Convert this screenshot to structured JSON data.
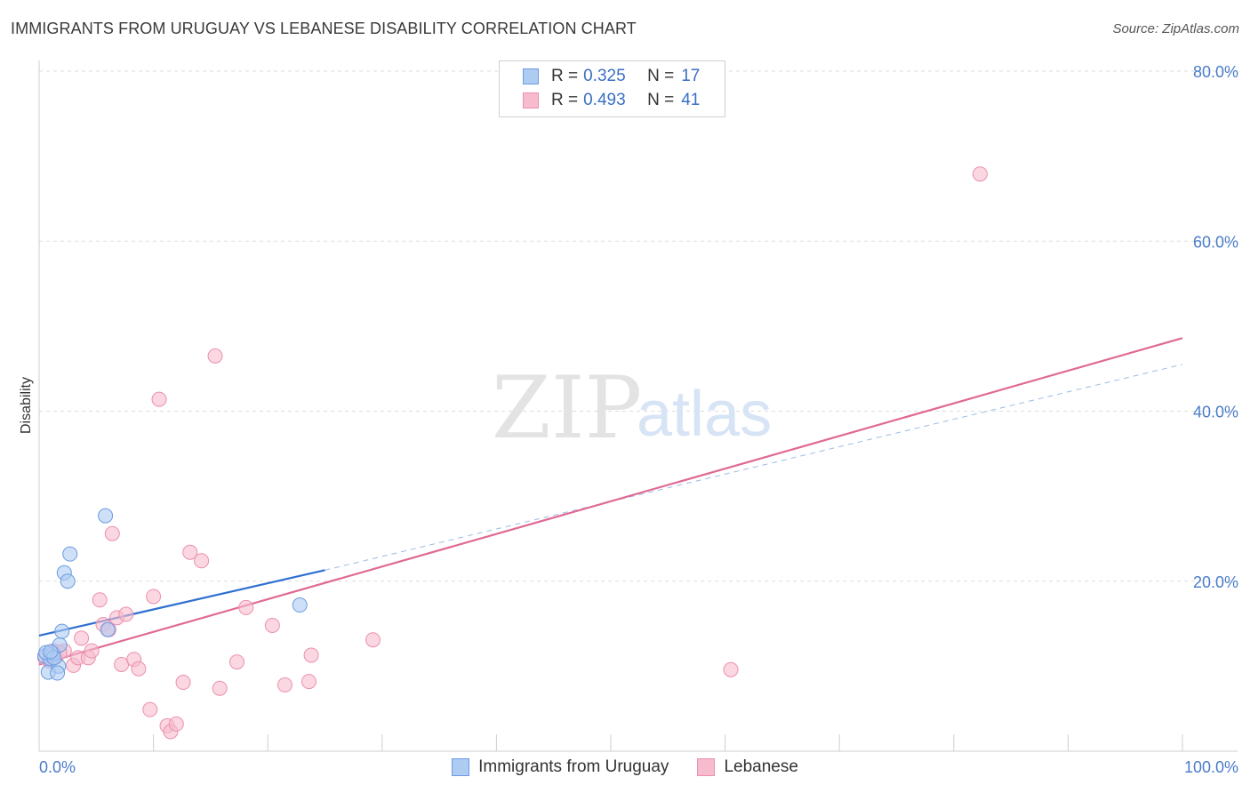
{
  "title": "IMMIGRANTS FROM URUGUAY VS LEBANESE DISABILITY CORRELATION CHART",
  "source": "Source: ZipAtlas.com",
  "watermark": {
    "part1": "ZIP",
    "part2": "atlas"
  },
  "colors": {
    "uruguay_fill": "#aecbf2",
    "uruguay_stroke": "#6b9be0",
    "uruguay_line": "#2f6fd0",
    "lebanese_fill": "#f6bccd",
    "lebanese_stroke": "#ec8fae",
    "lebanese_line": "#e06a93",
    "grid": "#dddddd",
    "tick_label": "#4a7cc9"
  },
  "legend": {
    "rows": [
      {
        "r_label": "R =",
        "r_value": "0.325",
        "n_label": "N =",
        "n_value": "17"
      },
      {
        "r_label": "R =",
        "r_value": "0.493",
        "n_label": "N =",
        "n_value": "41"
      }
    ]
  },
  "bottom_legend": [
    "Immigrants from Uruguay",
    "Lebanese"
  ],
  "chart_data": {
    "type": "scatter",
    "title": "IMMIGRANTS FROM URUGUAY VS LEBANESE DISABILITY CORRELATION CHART",
    "xlabel": "",
    "ylabel": "Disability",
    "xlim": [
      0,
      100
    ],
    "ylim": [
      0,
      80
    ],
    "x_tick_labels": [
      "0.0%",
      "100.0%"
    ],
    "y_ticks": [
      20,
      40,
      60,
      80
    ],
    "y_tick_labels": [
      "20.0%",
      "40.0%",
      "60.0%",
      "80.0%"
    ],
    "grid": true,
    "legend_position": "top-center",
    "series": [
      {
        "name": "Immigrants from Uruguay",
        "r": 0.325,
        "n": 17,
        "points": [
          [
            0.5,
            11.2
          ],
          [
            1.0,
            10.8
          ],
          [
            1.2,
            11.5
          ],
          [
            0.8,
            9.3
          ],
          [
            1.7,
            10.0
          ],
          [
            1.8,
            12.5
          ],
          [
            1.6,
            9.2
          ],
          [
            2.0,
            14.1
          ],
          [
            2.2,
            21.0
          ],
          [
            2.5,
            20.0
          ],
          [
            2.7,
            23.2
          ],
          [
            5.8,
            27.7
          ],
          [
            6.0,
            14.3
          ],
          [
            22.8,
            17.2
          ],
          [
            0.6,
            11.6
          ],
          [
            1.3,
            11.0
          ],
          [
            1.0,
            11.7
          ]
        ],
        "trend": {
          "x": [
            0,
            25
          ],
          "y": [
            13.6,
            21.3
          ]
        },
        "trend_extended": {
          "x": [
            25,
            100
          ],
          "y": [
            21.3,
            45.5
          ]
        }
      },
      {
        "name": "Lebanese",
        "r": 0.493,
        "n": 41,
        "points": [
          [
            0.5,
            11.0
          ],
          [
            1.0,
            11.3
          ],
          [
            1.3,
            11.8
          ],
          [
            1.5,
            11.1
          ],
          [
            2.2,
            11.8
          ],
          [
            3.0,
            10.1
          ],
          [
            3.4,
            11.0
          ],
          [
            3.7,
            13.3
          ],
          [
            4.3,
            11.0
          ],
          [
            4.6,
            11.8
          ],
          [
            5.3,
            17.8
          ],
          [
            5.6,
            14.9
          ],
          [
            6.1,
            14.3
          ],
          [
            6.4,
            25.6
          ],
          [
            6.8,
            15.7
          ],
          [
            7.2,
            10.2
          ],
          [
            7.6,
            16.1
          ],
          [
            8.3,
            10.8
          ],
          [
            8.7,
            9.7
          ],
          [
            9.7,
            4.9
          ],
          [
            10.0,
            18.2
          ],
          [
            10.5,
            41.4
          ],
          [
            11.2,
            3.0
          ],
          [
            11.5,
            2.3
          ],
          [
            12.0,
            3.2
          ],
          [
            12.6,
            8.1
          ],
          [
            13.2,
            23.4
          ],
          [
            14.2,
            22.4
          ],
          [
            15.4,
            46.5
          ],
          [
            15.8,
            7.4
          ],
          [
            17.3,
            10.5
          ],
          [
            18.1,
            16.9
          ],
          [
            20.4,
            14.8
          ],
          [
            21.5,
            7.8
          ],
          [
            23.6,
            8.2
          ],
          [
            23.8,
            11.3
          ],
          [
            29.2,
            13.1
          ],
          [
            60.5,
            9.6
          ],
          [
            82.3,
            67.9
          ],
          [
            1.8,
            11.6
          ],
          [
            0.9,
            10.6
          ]
        ],
        "trend": {
          "x": [
            0,
            100
          ],
          "y": [
            10.2,
            48.6
          ]
        }
      }
    ]
  }
}
